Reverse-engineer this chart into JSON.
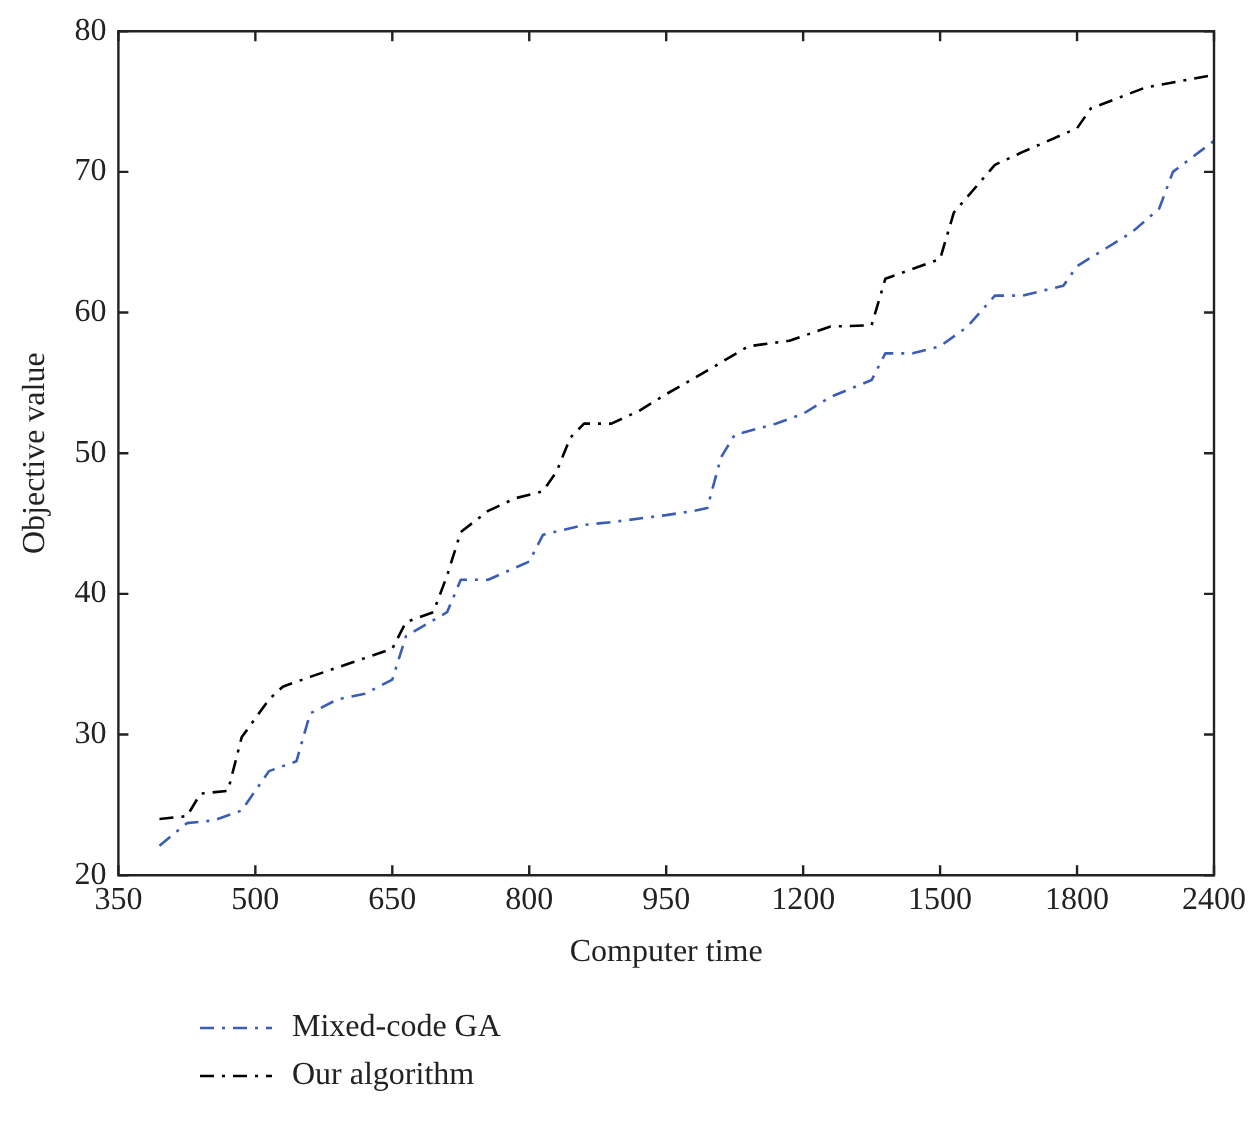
{
  "chart_data": {
    "type": "line",
    "xlabel": "Computer time",
    "ylabel": "Objective value",
    "categories": [
      "350",
      null,
      null,
      null,
      null,
      null,
      null,
      null,
      null,
      null,
      "500",
      null,
      null,
      null,
      null,
      null,
      null,
      null,
      null,
      null,
      "650",
      null,
      null,
      null,
      null,
      null,
      null,
      null,
      null,
      null,
      "800",
      null,
      null,
      null,
      null,
      null,
      null,
      null,
      null,
      null,
      "950",
      null,
      null,
      null,
      null,
      null,
      null,
      null,
      null,
      null,
      "1200",
      null,
      null,
      null,
      null,
      null,
      null,
      null,
      null,
      null,
      "1500",
      null,
      null,
      null,
      null,
      null,
      null,
      null,
      null,
      null,
      "1800",
      null,
      null,
      null,
      null,
      null,
      null,
      null,
      null,
      null,
      "2400"
    ],
    "ylim": [
      20,
      80
    ],
    "yticks": [
      20,
      30,
      40,
      50,
      60,
      70,
      80
    ],
    "legend": "bottom left",
    "line_style": "dashed",
    "marker": "none",
    "grid": false,
    "series": [
      {
        "name": "Mixed-code GA",
        "color": "#3a5db8",
        "values": [
          null,
          null,
          null,
          22.1,
          null,
          23.7,
          null,
          23.9,
          null,
          24.6,
          null,
          27.4,
          null,
          28.1,
          31.5,
          null,
          32.5,
          null,
          32.9,
          null,
          33.9,
          37.0,
          null,
          null,
          38.7,
          41.0,
          null,
          41.0,
          null,
          null,
          42.3,
          44.2,
          null,
          null,
          44.9,
          null,
          45.1,
          null,
          null,
          null,
          45.6,
          null,
          45.9,
          46.1,
          49.7,
          51.3,
          null,
          null,
          52.1,
          null,
          52.8,
          null,
          54.0,
          null,
          null,
          55.2,
          57.1,
          null,
          57.1,
          null,
          57.6,
          null,
          59.0,
          null,
          61.2,
          null,
          61.2,
          null,
          null,
          61.9,
          63.3,
          null,
          null,
          null,
          65.7,
          null,
          67.4,
          70.0,
          null,
          null,
          72.2
        ]
      },
      {
        "name": "Our algorithm",
        "color": "#000000",
        "values": [
          null,
          null,
          null,
          24.0,
          null,
          24.2,
          25.8,
          null,
          26.0,
          29.8,
          null,
          32.5,
          33.4,
          null,
          34.1,
          null,
          null,
          35.1,
          null,
          null,
          36.1,
          38.0,
          null,
          38.7,
          41.3,
          44.4,
          null,
          45.9,
          null,
          46.8,
          null,
          47.3,
          48.7,
          51.1,
          52.1,
          null,
          52.1,
          null,
          53.0,
          null,
          54.2,
          null,
          55.3,
          null,
          null,
          null,
          57.6,
          null,
          null,
          58.0,
          null,
          null,
          59.0,
          null,
          null,
          59.1,
          62.4,
          null,
          null,
          null,
          63.8,
          67.1,
          null,
          null,
          70.5,
          null,
          71.4,
          null,
          null,
          null,
          73.1,
          74.5,
          null,
          null,
          null,
          76.0,
          null,
          null,
          null,
          null,
          76.9
        ]
      }
    ]
  }
}
